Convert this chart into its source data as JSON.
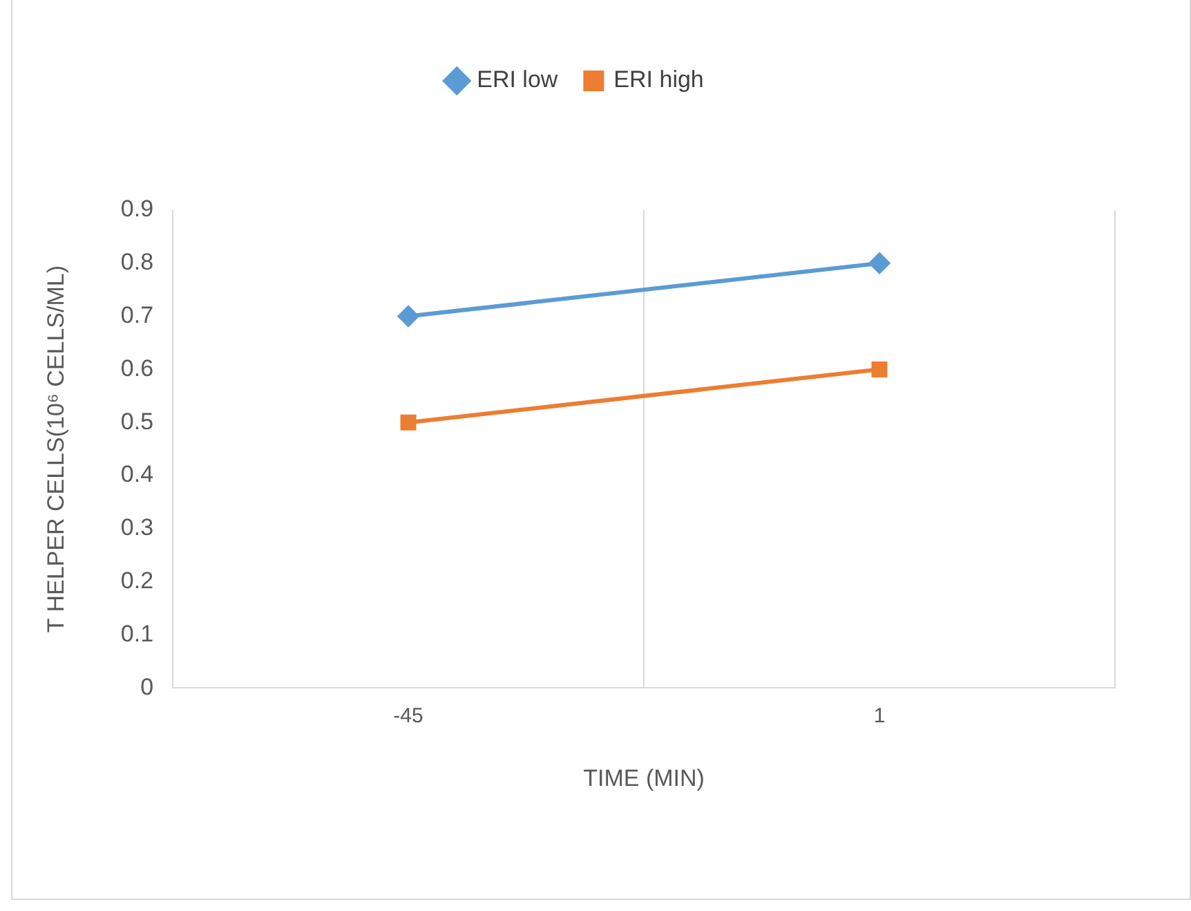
{
  "chart_data": {
    "type": "line",
    "xlabel": "TIME (MIN)",
    "ylabel": "T HELPER CELLS(10⁶ CELLS/ML)",
    "categories": [
      "-45",
      "1"
    ],
    "series": [
      {
        "name": "ERI low",
        "color": "#5b9bd5",
        "marker": "diamond",
        "values": [
          0.7,
          0.8
        ]
      },
      {
        "name": "ERI high",
        "color": "#ed7d31",
        "marker": "square",
        "values": [
          0.5,
          0.6
        ]
      }
    ],
    "ylim": [
      0,
      0.9
    ],
    "yticks": [
      0,
      0.1,
      0.2,
      0.3,
      0.4,
      0.5,
      0.6,
      0.7,
      0.8,
      0.9
    ],
    "grid": "x",
    "legend": "top"
  }
}
